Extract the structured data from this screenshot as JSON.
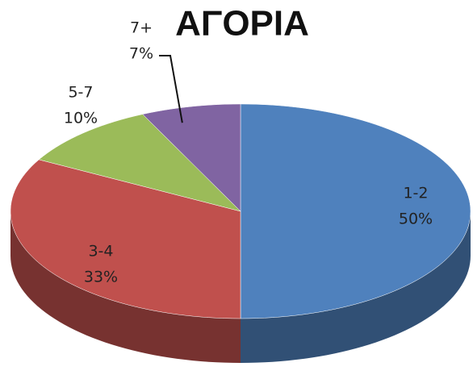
{
  "chart_data": {
    "type": "pie",
    "title": "ΑΓΟΡΙΑ",
    "categories": [
      "1-2",
      "3-4",
      "5-7",
      "7+"
    ],
    "values": [
      50,
      33,
      10,
      7
    ],
    "value_labels": [
      "50%",
      "33%",
      "10%",
      "7%"
    ],
    "colors": [
      "#4f81bd",
      "#c0504d",
      "#9bbb59",
      "#8064a2"
    ],
    "start_angle": 0,
    "direction": "clockwise",
    "three_d": true
  }
}
